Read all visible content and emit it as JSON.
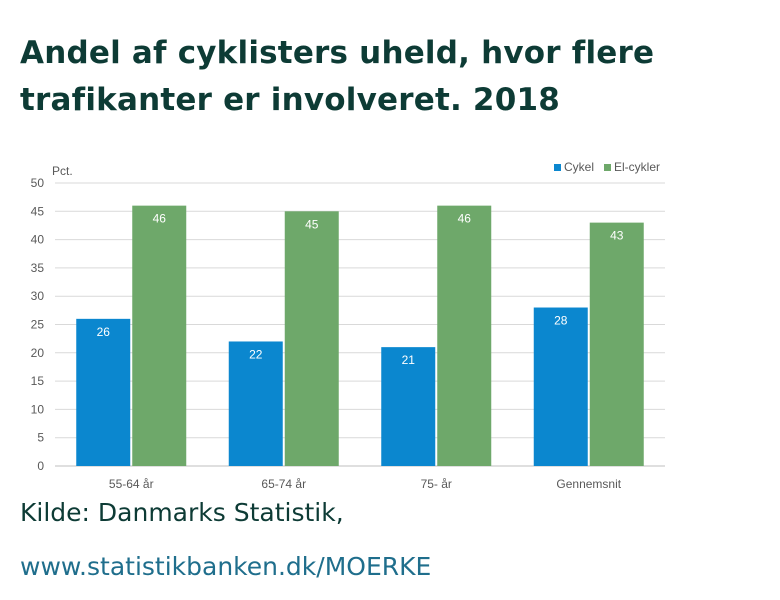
{
  "title_lines": [
    "Andel af cyklisters uheld, hvor flere",
    "trafikanter er involveret. 2018"
  ],
  "source": {
    "label": "Kilde: Danmarks Statistik,",
    "url": "www.statistikbanken.dk/MOERKE"
  },
  "chart_data": {
    "type": "bar",
    "ylabel": "Pct.",
    "ylim": [
      0,
      50
    ],
    "yticks": [
      0,
      5,
      10,
      15,
      20,
      25,
      30,
      35,
      40,
      45,
      50
    ],
    "grid": true,
    "legend_position": "top-right",
    "categories": [
      "55-64 år",
      "65-74 år",
      "75- år",
      "Gennemsnit"
    ],
    "series": [
      {
        "name": "Cykel",
        "color": "#0b87cf",
        "values": [
          26,
          22,
          21,
          28
        ],
        "labels": [
          "26",
          "22",
          "21",
          "28"
        ]
      },
      {
        "name": "El-cykler",
        "color": "#6ea86a",
        "values": [
          46,
          45,
          46,
          43
        ],
        "labels": [
          "46",
          "45",
          "46",
          "43"
        ]
      }
    ]
  }
}
